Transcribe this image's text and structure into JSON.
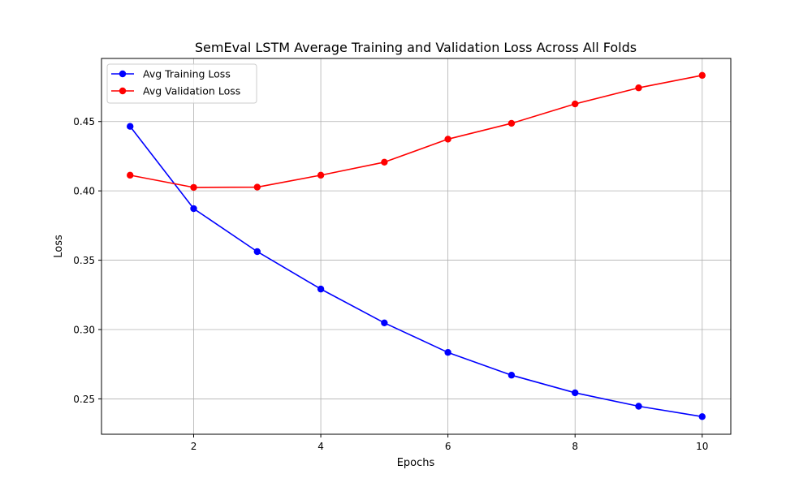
{
  "chart_data": {
    "type": "line",
    "title": "SemEval LSTM Average Training and Validation Loss Across All Folds",
    "xlabel": "Epochs",
    "ylabel": "Loss",
    "x": [
      1,
      2,
      3,
      4,
      5,
      6,
      7,
      8,
      9,
      10
    ],
    "xlim": [
      0.55,
      10.45
    ],
    "ylim": [
      0.2245,
      0.4955
    ],
    "xticks": [
      2,
      4,
      6,
      8,
      10
    ],
    "yticks": [
      0.25,
      0.3,
      0.35,
      0.4,
      0.45
    ],
    "ytick_labels": [
      "0.25",
      "0.30",
      "0.35",
      "0.40",
      "0.45"
    ],
    "grid": true,
    "legend_position": "top-left",
    "series": [
      {
        "name": "Avg Training Loss",
        "color": "#0000ff",
        "marker": "circle",
        "values": [
          0.4465,
          0.3872,
          0.3562,
          0.3292,
          0.3048,
          0.2835,
          0.2671,
          0.2544,
          0.2447,
          0.2372
        ]
      },
      {
        "name": "Avg Validation Loss",
        "color": "#ff0000",
        "marker": "circle",
        "values": [
          0.4113,
          0.4025,
          0.4027,
          0.4113,
          0.4207,
          0.4373,
          0.4487,
          0.4627,
          0.4743,
          0.4833
        ]
      }
    ]
  }
}
